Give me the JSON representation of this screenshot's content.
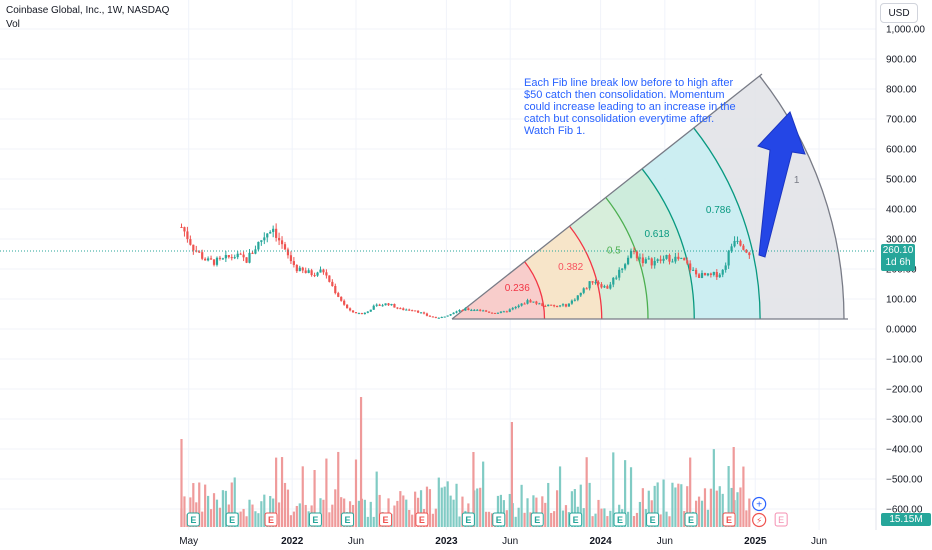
{
  "header": {
    "title": "Coinbase Global, Inc., 1W, NASDAQ",
    "subtitle": "Vol",
    "currency": "USD"
  },
  "annotation": "Each Fib line break low before to high after $50 catch then consolidation. Momentum could increase leading to an increase in the catch but consolidation everytime after. Watch Fib 1.",
  "price_label": {
    "value": "260.10",
    "countdown": "1d 6h"
  },
  "volume_label": "15.15M",
  "colors": {
    "up": "#26a69a",
    "down": "#ef5350",
    "vol_up": "#80cbc4",
    "vol_down": "#ef9a9a",
    "arrow": "#2446e6"
  },
  "chart_data": {
    "type": "candlestick",
    "y_axis": {
      "ticks": [
        "1,000.00",
        "900.00",
        "800.00",
        "700.00",
        "600.00",
        "500.00",
        "400.00",
        "300.00",
        "200.00",
        "100.00",
        "0.0000",
        "−100.00",
        "−200.00",
        "−300.00",
        "−400.00",
        "−500.00",
        "−600.00"
      ],
      "range": [
        -620,
        1030
      ]
    },
    "x_axis": {
      "ticks": [
        "May",
        "2022",
        "Jun",
        "2023",
        "Jun",
        "2024",
        "Jun",
        "2025",
        "Jun"
      ]
    },
    "close_path": [
      {
        "t": "2021-04",
        "p": 340
      },
      {
        "t": "2021-05",
        "p": 265
      },
      {
        "t": "2021-06",
        "p": 225
      },
      {
        "t": "2021-07",
        "p": 225
      },
      {
        "t": "2021-08",
        "p": 245
      },
      {
        "t": "2021-09",
        "p": 230
      },
      {
        "t": "2021-10",
        "p": 290
      },
      {
        "t": "2021-11",
        "p": 345
      },
      {
        "t": "2021-12",
        "p": 255
      },
      {
        "t": "2022-01",
        "p": 195
      },
      {
        "t": "2022-02",
        "p": 185
      },
      {
        "t": "2022-03",
        "p": 195
      },
      {
        "t": "2022-04",
        "p": 120
      },
      {
        "t": "2022-05",
        "p": 60
      },
      {
        "t": "2022-06",
        "p": 50
      },
      {
        "t": "2022-07",
        "p": 75
      },
      {
        "t": "2022-08",
        "p": 85
      },
      {
        "t": "2022-09",
        "p": 65
      },
      {
        "t": "2022-10",
        "p": 65
      },
      {
        "t": "2022-11",
        "p": 45
      },
      {
        "t": "2022-12",
        "p": 35
      },
      {
        "t": "2023-01",
        "p": 55
      },
      {
        "t": "2023-02",
        "p": 65
      },
      {
        "t": "2023-03",
        "p": 65
      },
      {
        "t": "2023-04",
        "p": 55
      },
      {
        "t": "2023-05",
        "p": 55
      },
      {
        "t": "2023-06",
        "p": 72
      },
      {
        "t": "2023-07",
        "p": 95
      },
      {
        "t": "2023-08",
        "p": 80
      },
      {
        "t": "2023-09",
        "p": 75
      },
      {
        "t": "2023-10",
        "p": 80
      },
      {
        "t": "2023-11",
        "p": 120
      },
      {
        "t": "2023-12",
        "p": 165
      },
      {
        "t": "2024-01",
        "p": 135
      },
      {
        "t": "2024-02",
        "p": 195
      },
      {
        "t": "2024-03",
        "p": 260
      },
      {
        "t": "2024-04",
        "p": 225
      },
      {
        "t": "2024-05",
        "p": 225
      },
      {
        "t": "2024-06",
        "p": 240
      },
      {
        "t": "2024-07",
        "p": 225
      },
      {
        "t": "2024-08",
        "p": 180
      },
      {
        "t": "2024-09",
        "p": 175
      },
      {
        "t": "2024-10",
        "p": 190
      },
      {
        "t": "2024-11",
        "p": 315
      },
      {
        "t": "2024-12",
        "p": 260
      }
    ],
    "fib_fan": {
      "origin": {
        "t": "2022-12-26",
        "p": 35
      },
      "levels": [
        {
          "label": "0.236",
          "fill": "#f8c9cb",
          "stroke": "#f23645",
          "text_color": "#f23645"
        },
        {
          "label": "0.382",
          "fill": "#fde3c6",
          "stroke": "#f23645",
          "text_color": "#f7525f"
        },
        {
          "label": "0.5",
          "fill": "#d8eedb",
          "stroke": "#4caf50",
          "text_color": "#4caf50"
        },
        {
          "label": "0.618",
          "fill": "#cdebd8",
          "stroke": "#089981",
          "text_color": "#089981"
        },
        {
          "label": "0.786",
          "fill": "#c8eef3",
          "stroke": "#089981",
          "text_color": "#089981"
        },
        {
          "label": "1",
          "fill": "#e1e2e6",
          "stroke": "#787b86",
          "text_color": "#787b86"
        }
      ]
    }
  }
}
